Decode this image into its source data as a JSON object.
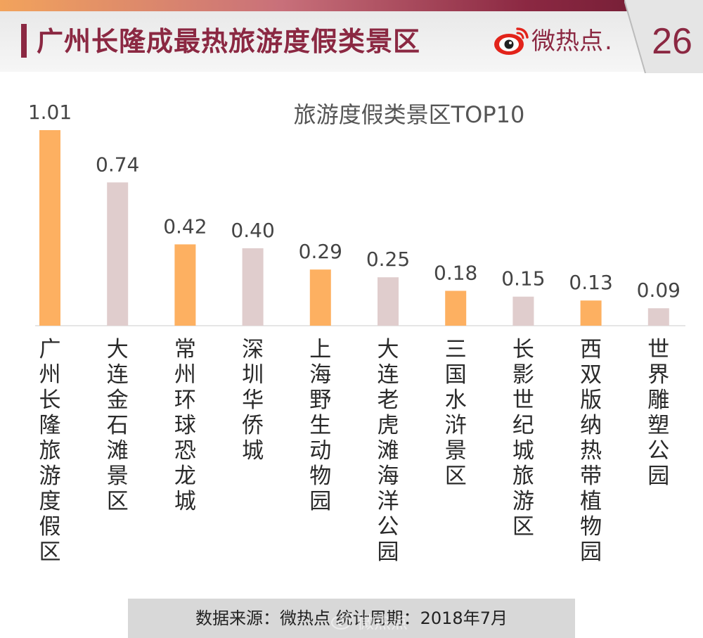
{
  "header": {
    "title": "广州长隆成最热旅游度假类景区",
    "brand": "微热点",
    "brand_dot": ".",
    "page_number": "26"
  },
  "colors": {
    "accent": "#8b2842",
    "bar_primary": "#fdb061",
    "bar_secondary": "#e0cdcd"
  },
  "chart_data": {
    "type": "bar",
    "title": "旅游度假类景区TOP10",
    "categories": [
      "广州长隆旅游度假区",
      "大连金石滩景区",
      "常州环球恐龙城",
      "深圳华侨城",
      "上海野生动物园",
      "大连老虎滩海洋公园",
      "三国水浒景区",
      "长影世纪城旅游区",
      "西双版纳热带植物园",
      "世界雕塑公园"
    ],
    "values": [
      1.01,
      0.74,
      0.42,
      0.4,
      0.29,
      0.25,
      0.18,
      0.15,
      0.13,
      0.09
    ],
    "value_labels": [
      "1.01",
      "0.74",
      "0.42",
      "0.40",
      "0.29",
      "0.25",
      "0.18",
      "0.15",
      "0.13",
      "0.09"
    ],
    "colors": [
      "#fdb061",
      "#e0cdcd",
      "#fdb061",
      "#e0cdcd",
      "#fdb061",
      "#e0cdcd",
      "#fdb061",
      "#e0cdcd",
      "#fdb061",
      "#e0cdcd"
    ],
    "xlabel": "",
    "ylabel": "",
    "ylim": [
      0,
      1.01
    ],
    "grid": false,
    "legend": "none"
  },
  "footer": {
    "source": "数据来源：微热点   统计周期：2018年7月",
    "watermark": "微热点"
  }
}
